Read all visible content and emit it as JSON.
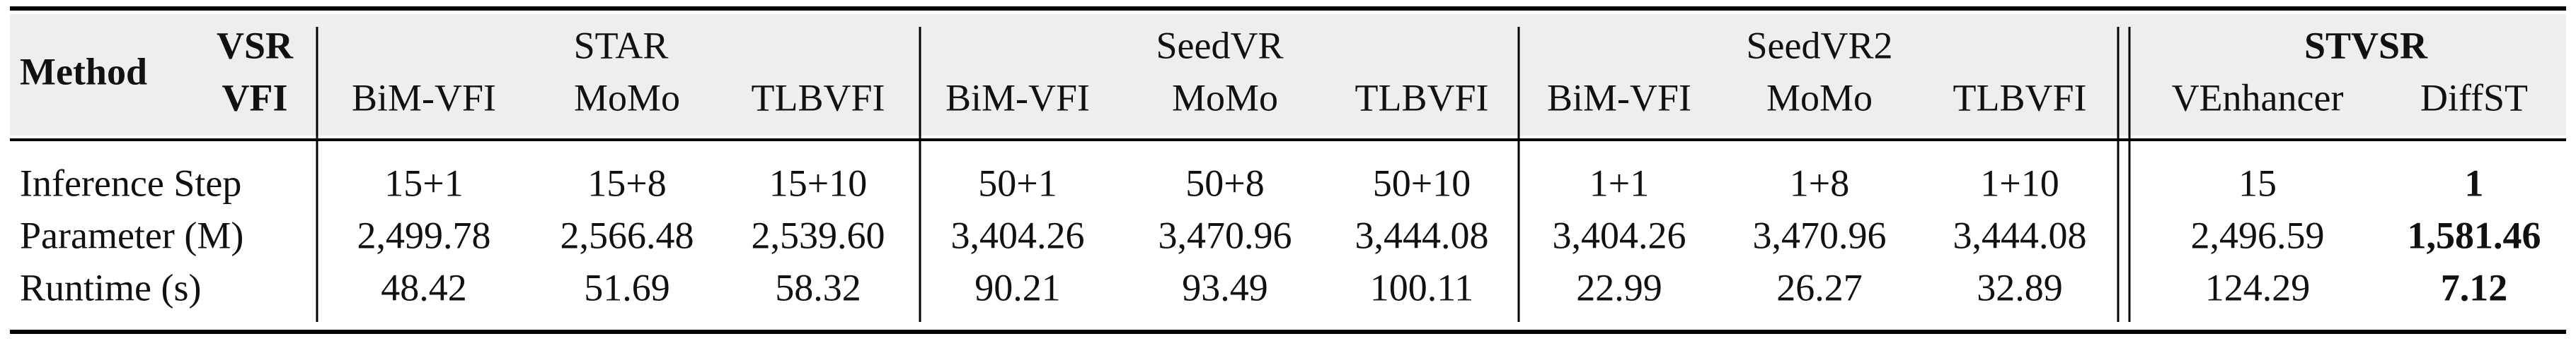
{
  "table": {
    "header": {
      "method": "Method",
      "vsr": "VSR",
      "vfi": "VFI"
    },
    "groups": [
      {
        "name": "STAR",
        "columns": [
          "BiM-VFI",
          "MoMo",
          "TLBVFI"
        ]
      },
      {
        "name": "SeedVR",
        "columns": [
          "BiM-VFI",
          "MoMo",
          "TLBVFI"
        ]
      },
      {
        "name": "SeedVR2",
        "columns": [
          "BiM-VFI",
          "MoMo",
          "TLBVFI"
        ]
      },
      {
        "name": "STVSR",
        "columns": [
          "VEnhancer",
          "DiffST"
        ]
      }
    ],
    "rows": [
      {
        "label": "Inference Step",
        "values": [
          "15+1",
          "15+8",
          "15+10",
          "50+1",
          "50+8",
          "50+10",
          "1+1",
          "1+8",
          "1+10",
          "15",
          "1"
        ]
      },
      {
        "label": "Parameter (M)",
        "values": [
          "2,499.78",
          "2,566.48",
          "2,539.60",
          "3,404.26",
          "3,470.96",
          "3,444.08",
          "3,404.26",
          "3,470.96",
          "3,444.08",
          "2,496.59",
          "1,581.46"
        ]
      },
      {
        "label": "Runtime (s)",
        "values": [
          "48.42",
          "51.69",
          "58.32",
          "90.21",
          "93.49",
          "100.11",
          "22.99",
          "26.27",
          "32.89",
          "124.29",
          "7.12"
        ]
      }
    ]
  }
}
